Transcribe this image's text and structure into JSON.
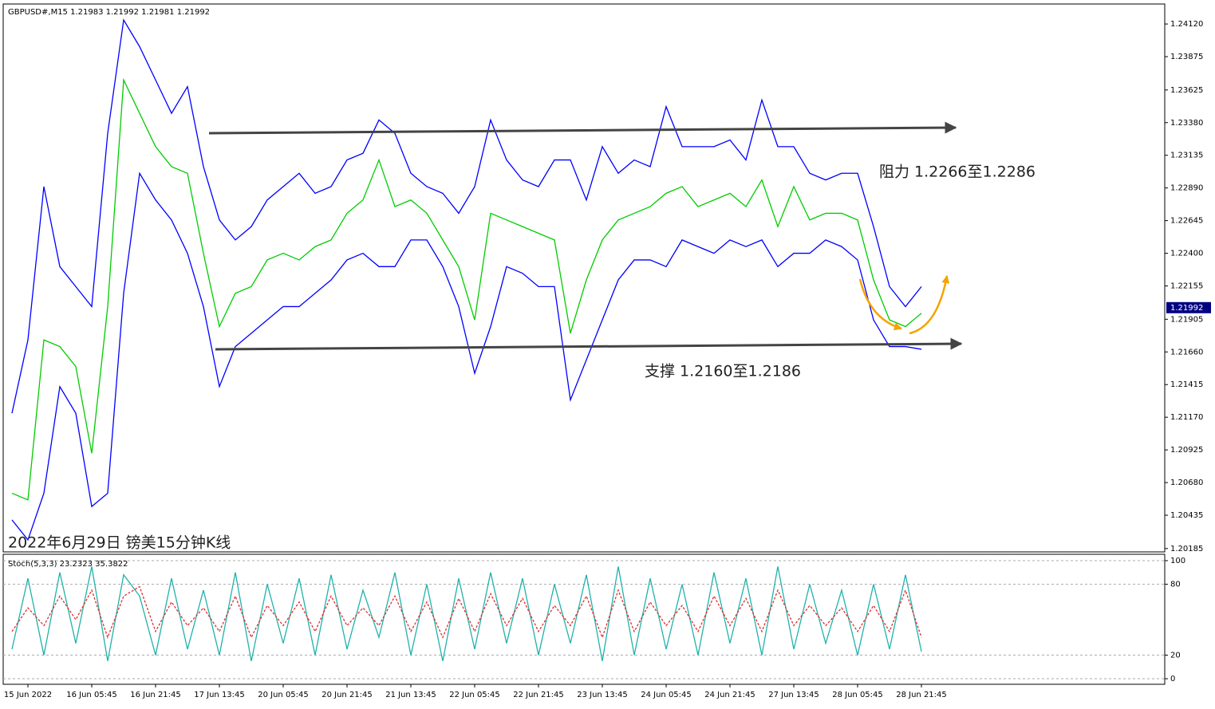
{
  "chart_data": [
    {
      "type": "line",
      "title": "GBPUSD#,M15  1.21983 1.21992 1.21981 1.21992",
      "annotations": [
        "阻力 1.2266至1.2286",
        "支撑 1.2160至1.2186",
        "2022年6月29日 镑美15分钟K线"
      ],
      "categories": [
        null,
        "15 Jun 2022",
        null,
        null,
        null,
        "16 Jun 05:45",
        null,
        null,
        null,
        "16 Jun 21:45",
        null,
        null,
        null,
        "17 Jun 13:45",
        null,
        null,
        null,
        "20 Jun 05:45",
        null,
        null,
        null,
        "20 Jun 21:45",
        null,
        null,
        null,
        "21 Jun 13:45",
        null,
        null,
        null,
        "22 Jun 05:45",
        null,
        null,
        null,
        "22 Jun 21:45",
        null,
        null,
        null,
        "23 Jun 13:45",
        null,
        null,
        null,
        "24 Jun 05:45",
        null,
        null,
        null,
        "24 Jun 21:45",
        null,
        null,
        null,
        "27 Jun 13:45",
        null,
        null,
        null,
        "28 Jun 05:45",
        null,
        null,
        null,
        "28 Jun 21:45"
      ],
      "series": [
        {
          "color": "#0000ff",
          "values": [
            1.212,
            1.2175,
            1.229,
            1.223,
            1.2215,
            1.22,
            1.233,
            1.2415,
            1.2395,
            1.237,
            1.2345,
            1.2365,
            1.2305,
            1.2265,
            1.225,
            1.226,
            1.228,
            1.229,
            1.23,
            1.2285,
            1.229,
            1.231,
            1.2315,
            1.234,
            1.233,
            1.23,
            1.229,
            1.2285,
            1.227,
            1.229,
            1.234,
            1.231,
            1.2295,
            1.229,
            1.231,
            1.231,
            1.228,
            1.232,
            1.23,
            1.231,
            1.2305,
            1.235,
            1.232,
            1.232,
            1.232,
            1.2325,
            1.231,
            1.2355,
            1.232,
            1.232,
            1.23,
            1.2295,
            1.23,
            1.23,
            1.226,
            1.2215,
            1.22,
            1.2215
          ]
        },
        {
          "color": "#00cc00",
          "values": [
            1.206,
            1.2055,
            1.2175,
            1.217,
            1.2155,
            1.209,
            1.22,
            1.237,
            1.2345,
            1.232,
            1.2305,
            1.23,
            1.224,
            1.2185,
            1.221,
            1.2215,
            1.2235,
            1.224,
            1.2235,
            1.2245,
            1.225,
            1.227,
            1.228,
            1.231,
            1.2275,
            1.228,
            1.227,
            1.225,
            1.223,
            1.219,
            1.227,
            1.2265,
            1.226,
            1.2255,
            1.225,
            1.218,
            1.222,
            1.225,
            1.2265,
            1.227,
            1.2275,
            1.2285,
            1.229,
            1.2275,
            1.228,
            1.2285,
            1.2275,
            1.2295,
            1.226,
            1.229,
            1.2265,
            1.227,
            1.227,
            1.2265,
            1.222,
            1.219,
            1.2185,
            1.2195
          ]
        },
        {
          "color": "#0000ff",
          "values": [
            1.204,
            1.2025,
            1.206,
            1.214,
            1.212,
            1.205,
            1.206,
            1.221,
            1.23,
            1.228,
            1.2265,
            1.224,
            1.22,
            1.214,
            1.217,
            1.218,
            1.219,
            1.22,
            1.22,
            1.221,
            1.222,
            1.2235,
            1.224,
            1.223,
            1.223,
            1.225,
            1.225,
            1.223,
            1.22,
            1.215,
            1.2185,
            1.223,
            1.2225,
            1.2215,
            1.2215,
            1.213,
            1.216,
            1.219,
            1.222,
            1.2235,
            1.2235,
            1.223,
            1.225,
            1.2245,
            1.224,
            1.225,
            1.2245,
            1.225,
            1.223,
            1.224,
            1.224,
            1.225,
            1.2245,
            1.2235,
            1.219,
            1.217,
            1.217,
            1.2168
          ]
        }
      ],
      "last_price": {
        "value": 1.21992,
        "label": "1.21992"
      },
      "ylim": [
        1.2016,
        1.2427
      ],
      "yticks": [
        {
          "value": 1.2412,
          "label": "1.24120"
        },
        {
          "value": 1.23875,
          "label": "1.23875"
        },
        {
          "value": 1.23625,
          "label": "1.23625"
        },
        {
          "value": 1.2338,
          "label": "1.23380"
        },
        {
          "value": 1.23135,
          "label": "1.23135"
        },
        {
          "value": 1.2289,
          "label": "1.22890"
        },
        {
          "value": 1.22645,
          "label": "1.22645"
        },
        {
          "value": 1.224,
          "label": "1.22400"
        },
        {
          "value": 1.22155,
          "label": "1.22155"
        },
        {
          "value": 1.21905,
          "label": "1.21905"
        },
        {
          "value": 1.2166,
          "label": "1.21660"
        },
        {
          "value": 1.21415,
          "label": "1.21415"
        },
        {
          "value": 1.2117,
          "label": "1.21170"
        },
        {
          "value": 1.20925,
          "label": "1.20925"
        },
        {
          "value": 1.2068,
          "label": "1.20680"
        },
        {
          "value": 1.20435,
          "label": "1.20435"
        },
        {
          "value": 1.20185,
          "label": "1.20185"
        }
      ]
    },
    {
      "type": "line",
      "title": "Stoch(5,3,3) 23.2323 35.3822",
      "series": [
        {
          "color": "#20b2aa",
          "values": [
            25,
            85,
            20,
            90,
            30,
            95,
            15,
            88,
            70,
            20,
            85,
            25,
            75,
            20,
            90,
            15,
            80,
            30,
            85,
            20,
            88,
            25,
            75,
            35,
            90,
            20,
            80,
            15,
            85,
            25,
            90,
            30,
            85,
            20,
            80,
            30,
            88,
            15,
            95,
            20,
            85,
            25,
            80,
            20,
            90,
            30,
            85,
            20,
            95,
            25,
            80,
            30,
            75,
            20,
            80,
            25,
            88,
            23
          ]
        },
        {
          "color": "#e03030",
          "dashed": true,
          "values": [
            40,
            60,
            45,
            70,
            50,
            75,
            35,
            70,
            78,
            40,
            65,
            45,
            60,
            40,
            70,
            35,
            62,
            45,
            65,
            40,
            70,
            45,
            60,
            45,
            70,
            40,
            65,
            35,
            68,
            40,
            72,
            45,
            68,
            40,
            62,
            45,
            70,
            35,
            75,
            40,
            65,
            45,
            62,
            40,
            70,
            45,
            68,
            40,
            75,
            45,
            62,
            45,
            60,
            40,
            62,
            40,
            75,
            35
          ]
        }
      ],
      "ylim": [
        -4.7,
        105.4
      ],
      "yticks": [
        0,
        20,
        80,
        100
      ],
      "grid": true
    }
  ]
}
